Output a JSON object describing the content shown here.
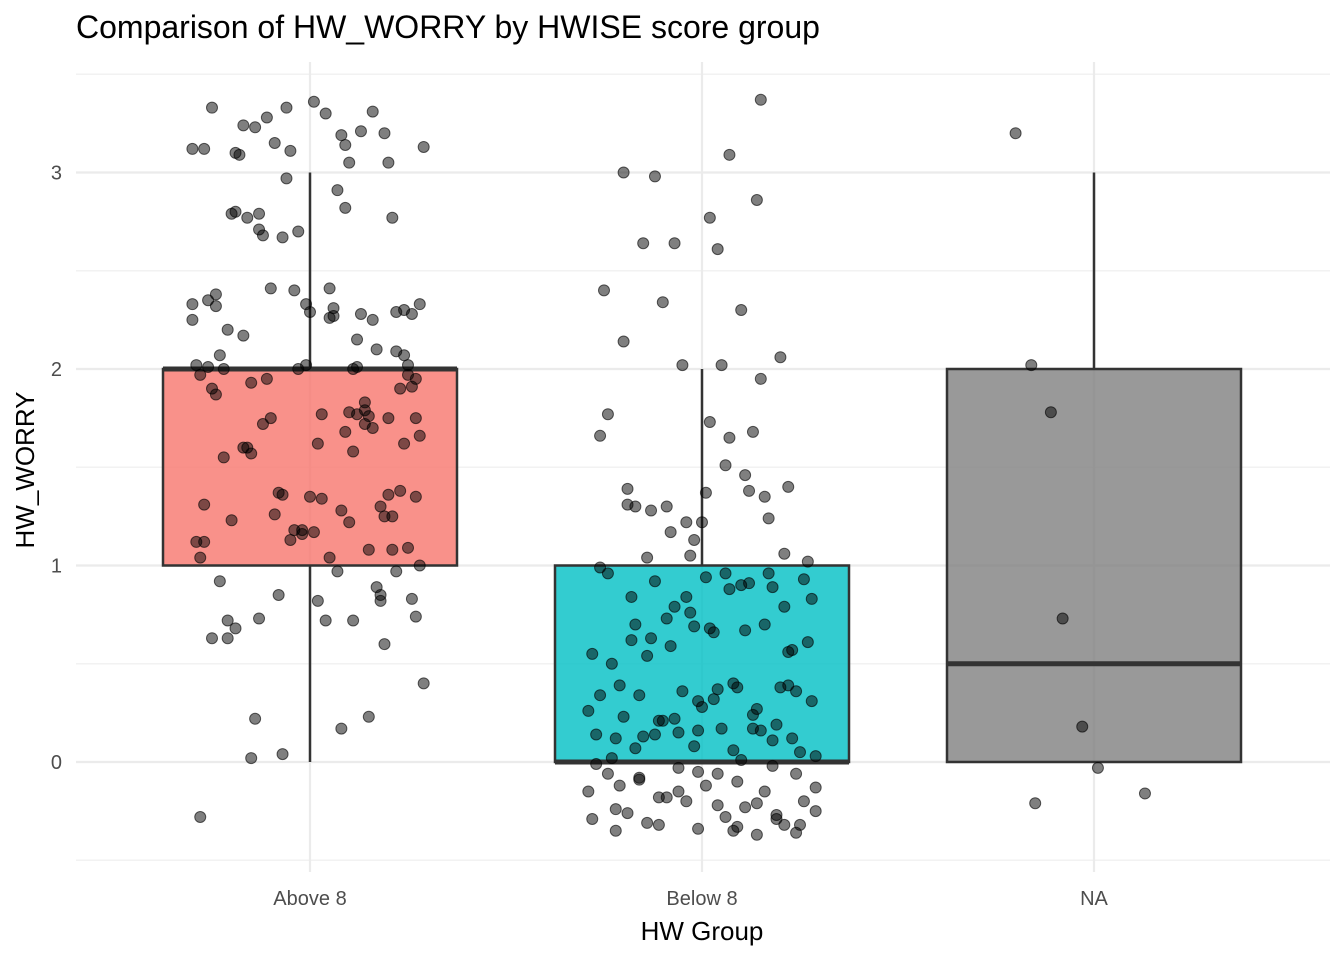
{
  "chart_data": {
    "type": "boxplot",
    "title": "Comparison of HW_WORRY by HWISE score group",
    "xlabel": "HW Group",
    "ylabel": "HW_WORRY",
    "categories": [
      "Above 8",
      "Below 8",
      "NA"
    ],
    "ylim": [
      -0.5,
      3.5
    ],
    "yticks": [
      0,
      1,
      2,
      3
    ],
    "grid": true,
    "legend": "none",
    "boxes": [
      {
        "category": "Above 8",
        "whisker_low": 0,
        "q1": 1,
        "median": 2,
        "q3": 2,
        "whisker_high": 3,
        "color": "#F8766D"
      },
      {
        "category": "Below 8",
        "whisker_low": 0,
        "q1": 0,
        "median": 0,
        "q3": 1,
        "whisker_high": 2,
        "color": "#00BFC4"
      },
      {
        "category": "NA",
        "whisker_low": 0,
        "q1": 0,
        "median": 0.5,
        "q3": 2,
        "whisker_high": 3,
        "color": "#7F7F7F"
      }
    ],
    "points": {
      "Above 8": [
        [
          -0.28,
          -0.28
        ],
        [
          0.08,
          0.17
        ],
        [
          -0.15,
          0.02
        ],
        [
          0.15,
          0.23
        ],
        [
          -0.07,
          0.04
        ],
        [
          -0.3,
          2.33
        ],
        [
          0.05,
          2.26
        ],
        [
          0.12,
          2.15
        ],
        [
          -0.19,
          2.8
        ],
        [
          0.1,
          3.05
        ],
        [
          0.02,
          1.62
        ],
        [
          -0.09,
          1.26
        ],
        [
          -0.24,
          1.87
        ],
        [
          0.27,
          1.35
        ],
        [
          -0.13,
          0.73
        ],
        [
          0.18,
          0.85
        ],
        [
          -0.01,
          2.02
        ],
        [
          0.25,
          1.09
        ],
        [
          -0.21,
          0.72
        ],
        [
          0.07,
          0.97
        ],
        [
          0.14,
          1.72
        ],
        [
          -0.27,
          1.31
        ],
        [
          0.22,
          2.29
        ],
        [
          -0.04,
          1.18
        ],
        [
          -0.17,
          1.6
        ],
        [
          0.19,
          0.6
        ],
        [
          -0.11,
          3.28
        ],
        [
          0.29,
          0.4
        ],
        [
          0.03,
          1.77
        ],
        [
          -0.25,
          0.63
        ],
        [
          0.11,
          1.58
        ],
        [
          -0.06,
          2.97
        ],
        [
          0.21,
          1.08
        ],
        [
          -0.29,
          1.12
        ],
        [
          0.16,
          1.7
        ],
        [
          -0.2,
          1.23
        ],
        [
          0.06,
          2.31
        ],
        [
          0.28,
          2.33
        ],
        [
          -0.14,
          0.22
        ],
        [
          0.01,
          3.36
        ],
        [
          -0.23,
          2.07
        ],
        [
          0.13,
          3.21
        ],
        [
          -0.03,
          2.7
        ],
        [
          0.24,
          2.07
        ],
        [
          -0.16,
          2.77
        ],
        [
          0.09,
          3.14
        ],
        [
          -0.08,
          0.85
        ],
        [
          0.26,
          0.83
        ],
        [
          -0.28,
          1.04
        ],
        [
          0.17,
          0.89
        ],
        [
          -0.12,
          1.72
        ],
        [
          0.04,
          3.3
        ],
        [
          -0.26,
          2.35
        ],
        [
          0.2,
          1.36
        ],
        [
          -0.05,
          3.11
        ],
        [
          0.23,
          1.9
        ],
        [
          -0.19,
          0.68
        ],
        [
          0.1,
          1.22
        ],
        [
          -0.02,
          1.18
        ],
        [
          0.27,
          1.95
        ],
        [
          -0.21,
          0.63
        ],
        [
          0.14,
          1.79
        ],
        [
          -0.1,
          2.41
        ],
        [
          0.08,
          3.19
        ],
        [
          -0.24,
          2.38
        ],
        [
          0.25,
          1.97
        ],
        [
          0.0,
          2.29
        ],
        [
          -0.15,
          1.57
        ],
        [
          0.19,
          3.2
        ],
        [
          -0.07,
          2.67
        ],
        [
          0.12,
          2.01
        ],
        [
          -0.27,
          1.12
        ],
        [
          0.22,
          2.09
        ],
        [
          0.05,
          1.04
        ],
        [
          -0.17,
          2.17
        ],
        [
          0.29,
          3.13
        ],
        [
          -0.04,
          2.4
        ],
        [
          0.16,
          2.25
        ],
        [
          -0.22,
          1.55
        ],
        [
          0.11,
          2.0
        ],
        [
          -0.09,
          3.15
        ],
        [
          0.26,
          2.28
        ],
        [
          -0.3,
          3.12
        ],
        [
          0.07,
          2.91
        ],
        [
          -0.13,
          2.79
        ],
        [
          0.21,
          2.77
        ],
        [
          -0.18,
          3.09
        ],
        [
          0.03,
          1.34
        ],
        [
          0.28,
          1.66
        ],
        [
          -0.25,
          3.33
        ],
        [
          0.15,
          1.08
        ],
        [
          -0.06,
          3.33
        ],
        [
          0.18,
          1.3
        ],
        [
          -0.2,
          2.79
        ],
        [
          0.09,
          1.68
        ],
        [
          -0.01,
          2.33
        ],
        [
          0.24,
          2.3
        ],
        [
          -0.28,
          1.97
        ],
        [
          0.13,
          2.28
        ],
        [
          -0.11,
          1.95
        ],
        [
          0.2,
          1.75
        ],
        [
          -0.23,
          0.92
        ],
        [
          0.06,
          2.27
        ],
        [
          0.27,
          0.74
        ],
        [
          -0.16,
          1.6
        ],
        [
          0.02,
          0.82
        ],
        [
          -0.08,
          1.37
        ],
        [
          0.23,
          1.38
        ],
        [
          0.17,
          2.1
        ],
        [
          -0.26,
          2.01
        ],
        [
          0.1,
          1.78
        ],
        [
          -0.14,
          3.23
        ],
        [
          0.25,
          2.02
        ],
        [
          -0.03,
          2.0
        ],
        [
          0.19,
          1.25
        ],
        [
          -0.21,
          2.2
        ],
        [
          0.14,
          1.83
        ],
        [
          -0.29,
          2.02
        ],
        [
          0.04,
          0.72
        ],
        [
          0.22,
          0.97
        ],
        [
          -0.12,
          2.68
        ],
        [
          0.08,
          1.28
        ],
        [
          -0.24,
          2.32
        ],
        [
          0.26,
          1.91
        ],
        [
          -0.05,
          1.13
        ],
        [
          0.12,
          1.77
        ],
        [
          -0.19,
          3.1
        ],
        [
          0.01,
          1.17
        ],
        [
          0.27,
          1.75
        ],
        [
          -0.1,
          1.75
        ],
        [
          0.16,
          3.31
        ],
        [
          -0.27,
          3.12
        ],
        [
          0.05,
          2.41
        ],
        [
          0.21,
          1.25
        ],
        [
          -0.15,
          1.93
        ],
        [
          0.11,
          0.72
        ],
        [
          -0.02,
          1.16
        ],
        [
          0.28,
          1.0
        ],
        [
          -0.22,
          2.0
        ],
        [
          0.18,
          0.82
        ],
        [
          -0.07,
          1.36
        ],
        [
          0.24,
          1.62
        ],
        [
          -0.3,
          2.25
        ],
        [
          0.09,
          2.82
        ],
        [
          -0.17,
          3.24
        ],
        [
          0.0,
          1.35
        ],
        [
          0.15,
          1.76
        ],
        [
          -0.13,
          2.71
        ],
        [
          0.2,
          3.05
        ],
        [
          -0.25,
          1.9
        ]
      ],
      "Below 8": [
        [
          -0.2,
          0.23
        ],
        [
          -0.15,
          0.13
        ],
        [
          -0.1,
          0.21
        ],
        [
          -0.05,
          0.36
        ],
        [
          0.0,
          0.28
        ],
        [
          0.05,
          0.17
        ],
        [
          0.1,
          0.01
        ],
        [
          0.15,
          0.16
        ],
        [
          0.2,
          0.38
        ],
        [
          0.25,
          0.05
        ],
        [
          -0.28,
          -0.29
        ],
        [
          -0.22,
          -0.35
        ],
        [
          -0.17,
          0.7
        ],
        [
          -0.12,
          0.92
        ],
        [
          -0.07,
          0.79
        ],
        [
          -0.02,
          0.69
        ],
        [
          0.03,
          0.66
        ],
        [
          0.08,
          0.4
        ],
        [
          0.13,
          0.17
        ],
        [
          0.18,
          0.89
        ],
        [
          0.23,
          0.57
        ],
        [
          0.28,
          0.83
        ],
        [
          -0.27,
          0.14
        ],
        [
          -0.21,
          -0.12
        ],
        [
          -0.16,
          -0.09
        ],
        [
          -0.11,
          -0.18
        ],
        [
          -0.06,
          -0.03
        ],
        [
          -0.01,
          -0.34
        ],
        [
          0.04,
          -0.06
        ],
        [
          0.09,
          -0.33
        ],
        [
          0.14,
          -0.21
        ],
        [
          0.19,
          -0.27
        ],
        [
          0.24,
          -0.36
        ],
        [
          0.29,
          -0.25
        ],
        [
          -0.26,
          1.66
        ],
        [
          -0.19,
          1.39
        ],
        [
          -0.13,
          1.28
        ],
        [
          -0.08,
          1.17
        ],
        [
          -0.03,
          1.05
        ],
        [
          0.02,
          1.73
        ],
        [
          0.07,
          1.65
        ],
        [
          0.12,
          1.38
        ],
        [
          0.17,
          1.24
        ],
        [
          0.22,
          1.4
        ],
        [
          0.27,
          1.02
        ],
        [
          -0.24,
          0.96
        ],
        [
          -0.18,
          0.62
        ],
        [
          -0.14,
          0.54
        ],
        [
          -0.09,
          0.73
        ],
        [
          -0.04,
          0.84
        ],
        [
          0.01,
          0.94
        ],
        [
          0.06,
          0.96
        ],
        [
          0.11,
          0.67
        ],
        [
          0.16,
          0.7
        ],
        [
          0.21,
          0.79
        ],
        [
          0.26,
          0.93
        ],
        [
          -0.29,
          0.26
        ],
        [
          -0.23,
          0.02
        ],
        [
          -0.17,
          0.07
        ],
        [
          -0.12,
          0.14
        ],
        [
          -0.07,
          0.22
        ],
        [
          -0.02,
          0.08
        ],
        [
          0.03,
          0.32
        ],
        [
          0.08,
          0.06
        ],
        [
          0.13,
          0.24
        ],
        [
          0.18,
          0.11
        ],
        [
          0.23,
          0.12
        ],
        [
          0.28,
          0.31
        ],
        [
          -0.27,
          -0.01
        ],
        [
          -0.22,
          -0.24
        ],
        [
          -0.16,
          -0.08
        ],
        [
          -0.11,
          -0.32
        ],
        [
          -0.06,
          -0.15
        ],
        [
          -0.01,
          -0.05
        ],
        [
          0.04,
          -0.22
        ],
        [
          0.09,
          -0.1
        ],
        [
          0.14,
          -0.37
        ],
        [
          0.19,
          -0.29
        ],
        [
          0.24,
          -0.06
        ],
        [
          0.29,
          -0.13
        ],
        [
          -0.25,
          2.4
        ],
        [
          -0.2,
          2.14
        ],
        [
          -0.15,
          2.64
        ],
        [
          -0.1,
          2.34
        ],
        [
          -0.05,
          2.02
        ],
        [
          0.0,
          1.22
        ],
        [
          0.05,
          2.02
        ],
        [
          0.1,
          2.3
        ],
        [
          0.15,
          1.95
        ],
        [
          0.2,
          2.06
        ],
        [
          -0.24,
          1.77
        ],
        [
          -0.19,
          1.31
        ],
        [
          -0.14,
          1.04
        ],
        [
          -0.09,
          1.3
        ],
        [
          -0.04,
          1.22
        ],
        [
          0.01,
          1.37
        ],
        [
          0.06,
          1.51
        ],
        [
          0.11,
          1.46
        ],
        [
          0.16,
          1.35
        ],
        [
          0.21,
          1.06
        ],
        [
          -0.28,
          0.55
        ],
        [
          -0.23,
          0.5
        ],
        [
          -0.18,
          0.84
        ],
        [
          -0.13,
          0.63
        ],
        [
          -0.08,
          0.59
        ],
        [
          -0.03,
          0.76
        ],
        [
          0.02,
          0.68
        ],
        [
          0.07,
          0.88
        ],
        [
          0.12,
          0.91
        ],
        [
          0.17,
          0.96
        ],
        [
          0.22,
          0.56
        ],
        [
          0.27,
          0.61
        ],
        [
          -0.26,
          0.34
        ],
        [
          -0.21,
          0.39
        ],
        [
          -0.16,
          0.34
        ],
        [
          -0.11,
          0.21
        ],
        [
          -0.06,
          0.15
        ],
        [
          -0.01,
          0.16
        ],
        [
          0.04,
          0.37
        ],
        [
          0.09,
          0.38
        ],
        [
          0.14,
          0.27
        ],
        [
          0.19,
          0.19
        ],
        [
          0.24,
          0.36
        ],
        [
          0.29,
          0.03
        ],
        [
          -0.29,
          -0.15
        ],
        [
          -0.24,
          -0.06
        ],
        [
          -0.19,
          -0.26
        ],
        [
          -0.14,
          -0.31
        ],
        [
          -0.09,
          -0.18
        ],
        [
          -0.04,
          -0.2
        ],
        [
          0.01,
          -0.12
        ],
        [
          0.06,
          -0.28
        ],
        [
          0.11,
          -0.23
        ],
        [
          0.16,
          -0.15
        ],
        [
          0.21,
          -0.32
        ],
        [
          0.26,
          -0.2
        ],
        [
          -0.2,
          3.0
        ],
        [
          -0.12,
          2.98
        ],
        [
          0.07,
          3.09
        ],
        [
          0.14,
          2.86
        ],
        [
          0.15,
          3.37
        ],
        [
          0.02,
          2.77
        ],
        [
          -0.07,
          2.64
        ],
        [
          0.04,
          2.61
        ],
        [
          0.13,
          1.68
        ],
        [
          -0.17,
          1.3
        ],
        [
          -0.02,
          1.13
        ],
        [
          0.1,
          0.9
        ],
        [
          -0.26,
          0.99
        ],
        [
          0.22,
          0.39
        ],
        [
          -0.22,
          0.12
        ],
        [
          0.08,
          -0.35
        ],
        [
          0.25,
          -0.32
        ],
        [
          -0.01,
          0.31
        ],
        [
          0.18,
          -0.02
        ]
      ],
      "NA": [
        [
          -0.2,
          3.2
        ],
        [
          -0.16,
          2.02
        ],
        [
          -0.11,
          1.78
        ],
        [
          -0.08,
          0.73
        ],
        [
          -0.03,
          0.18
        ],
        [
          0.01,
          -0.03
        ],
        [
          -0.15,
          -0.21
        ],
        [
          0.13,
          -0.16
        ]
      ]
    }
  }
}
